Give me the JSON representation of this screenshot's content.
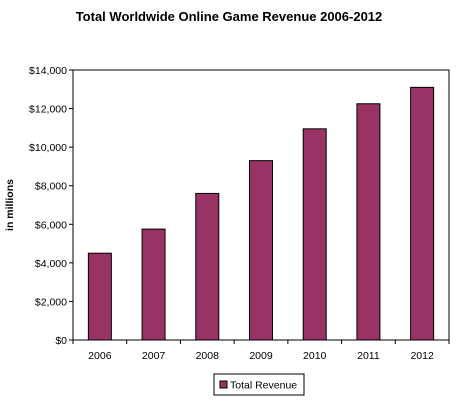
{
  "chart_data": {
    "type": "bar",
    "title": "Total Worldwide Online Game Revenue 2006-2012",
    "xlabel": "",
    "ylabel": "in millions",
    "categories": [
      "2006",
      "2007",
      "2008",
      "2009",
      "2010",
      "2011",
      "2012"
    ],
    "series": [
      {
        "name": "Total Revenue",
        "values": [
          4500,
          5750,
          7600,
          9300,
          10950,
          12250,
          13100
        ],
        "color": "#993366"
      }
    ],
    "ylim": [
      0,
      14000
    ],
    "yticks": [
      0,
      2000,
      4000,
      6000,
      8000,
      10000,
      12000,
      14000
    ],
    "ytick_labels": [
      "$0",
      "$2,000",
      "$4,000",
      "$6,000",
      "$8,000",
      "$10,000",
      "$12,000",
      "$14,000"
    ],
    "grid": false,
    "legend": "bottom"
  }
}
